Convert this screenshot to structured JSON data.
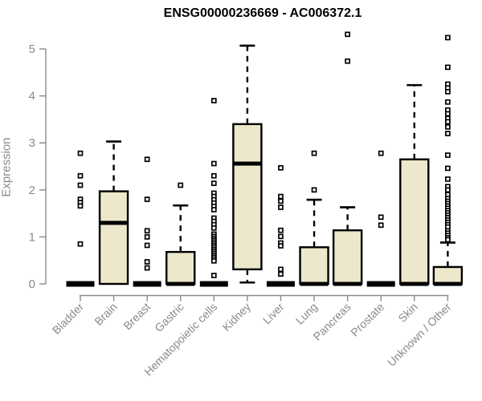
{
  "chart_data": {
    "type": "boxplot",
    "title": "ENSG00000236669 - AC006372.1",
    "ylabel": "Expression",
    "xlabel": "",
    "ylim": [
      0,
      5
    ],
    "yticks": [
      0,
      1,
      2,
      3,
      4,
      5
    ],
    "grid": false,
    "legend": "none",
    "categories": [
      "Bladder",
      "Brain",
      "Breast",
      "Gastric",
      "Hematopoietic cells",
      "Kidney",
      "Liver",
      "Lung",
      "Pancreas",
      "Prostate",
      "Skin",
      "Unknown / Other"
    ],
    "series": [
      {
        "category": "Bladder",
        "collapsed": true,
        "median": 0,
        "q1": 0,
        "q3": 0,
        "whisker_low": 0,
        "whisker_high": 0,
        "outliers": [
          2.78,
          2.3,
          2.1,
          1.8,
          1.73,
          1.66,
          0.85
        ]
      },
      {
        "category": "Brain",
        "collapsed": false,
        "median": 1.3,
        "q1": 0,
        "q3": 1.97,
        "whisker_low": 0,
        "whisker_high": 3.03,
        "outliers": []
      },
      {
        "category": "Breast",
        "collapsed": true,
        "median": 0,
        "q1": 0,
        "q3": 0,
        "whisker_low": 0,
        "whisker_high": 0,
        "outliers": [
          2.65,
          1.8,
          1.13,
          1.0,
          0.82,
          0.47,
          0.34
        ]
      },
      {
        "category": "Gastric",
        "collapsed": false,
        "median": 0,
        "q1": 0,
        "q3": 0.68,
        "whisker_low": 0,
        "whisker_high": 1.67,
        "outliers": [
          2.1
        ]
      },
      {
        "category": "Hematopoietic cells",
        "collapsed": true,
        "median": 0,
        "q1": 0,
        "q3": 0,
        "whisker_low": 0,
        "whisker_high": 0,
        "outliers": [
          3.9,
          2.56,
          2.3,
          2.14,
          1.93,
          1.86,
          1.79,
          1.72,
          1.65,
          1.58,
          1.4,
          1.33,
          1.26,
          1.19,
          1.06,
          1.01,
          0.97,
          0.93,
          0.89,
          0.85,
          0.81,
          0.77,
          0.73,
          0.69,
          0.65,
          0.61,
          0.57,
          0.53,
          0.49,
          0.18
        ]
      },
      {
        "category": "Kidney",
        "collapsed": false,
        "median": 2.56,
        "q1": 0.31,
        "q3": 3.4,
        "whisker_low": 0.03,
        "whisker_high": 5.07,
        "outliers": []
      },
      {
        "category": "Liver",
        "collapsed": true,
        "median": 0,
        "q1": 0,
        "q3": 0,
        "whisker_low": 0,
        "whisker_high": 0,
        "outliers": [
          2.47,
          1.86,
          1.76,
          1.63,
          1.14,
          1.01,
          0.87,
          0.81,
          0.31,
          0.21
        ]
      },
      {
        "category": "Lung",
        "collapsed": false,
        "median": 0,
        "q1": 0,
        "q3": 0.78,
        "whisker_low": 0,
        "whisker_high": 1.79,
        "outliers": [
          2.78,
          2.0
        ]
      },
      {
        "category": "Pancreas",
        "collapsed": false,
        "median": 0,
        "q1": 0,
        "q3": 1.14,
        "whisker_low": 0,
        "whisker_high": 1.63,
        "outliers": [
          5.31,
          4.74
        ]
      },
      {
        "category": "Prostate",
        "collapsed": true,
        "median": 0,
        "q1": 0,
        "q3": 0,
        "whisker_low": 0,
        "whisker_high": 0,
        "outliers": [
          2.78,
          1.42,
          1.25
        ]
      },
      {
        "category": "Skin",
        "collapsed": false,
        "median": 0,
        "q1": 0,
        "q3": 2.65,
        "whisker_low": 0,
        "whisker_high": 4.23,
        "outliers": []
      },
      {
        "category": "Unknown / Other",
        "collapsed": false,
        "median": 0,
        "q1": 0,
        "q3": 0.36,
        "whisker_low": 0,
        "whisker_high": 0.88,
        "outliers": [
          5.24,
          4.61,
          4.25,
          4.17,
          4.09,
          3.87,
          3.7,
          3.62,
          3.52,
          3.45,
          3.34,
          3.2,
          2.74,
          2.46,
          2.23,
          2.07,
          2.0,
          1.9,
          1.82,
          1.76,
          1.71,
          1.66,
          1.61,
          1.56,
          1.51,
          1.46,
          1.41,
          1.36,
          1.31,
          1.26,
          1.21,
          1.13,
          1.08,
          1.03,
          0.98,
          0.94
        ]
      }
    ],
    "colors": {
      "box_fill": "#EDE8CC",
      "box_stroke": "#000000",
      "median": "#000000",
      "axis": "#8a8a8a",
      "title": "#000000",
      "outlier_fill": "#ffffff",
      "background": "#ffffff"
    }
  }
}
